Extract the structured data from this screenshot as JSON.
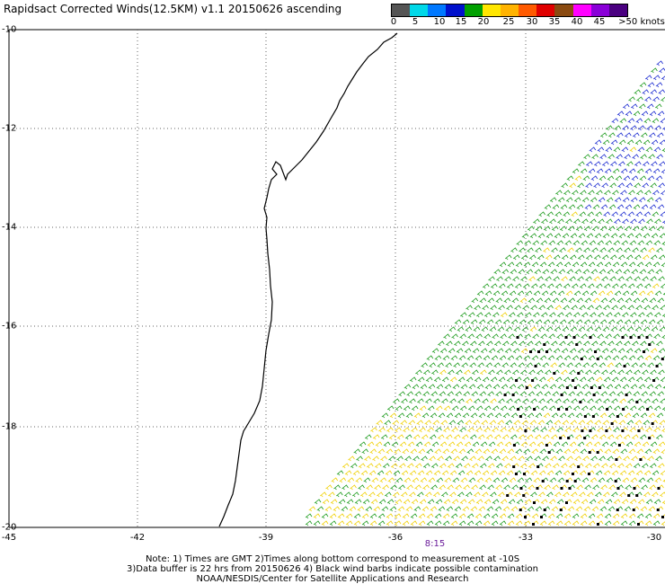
{
  "title": "Rapidsact Corrected Winds(12.5KM) v1.1 20150626 ascending",
  "legend": {
    "colors": [
      "#555555",
      "#00d8e8",
      "#0078ff",
      "#0010cc",
      "#00a000",
      "#ffe600",
      "#ffb300",
      "#ff5a00",
      "#e00000",
      "#8a4a10",
      "#ff00ff",
      "#8a00d8",
      "#4a0080"
    ],
    "labels": [
      "0",
      "5",
      "10",
      "15",
      "20",
      "25",
      "30",
      "35",
      "40",
      "45",
      ">50 knots"
    ]
  },
  "axes": {
    "lat_labels": [
      "-10",
      "-12",
      "-14",
      "-16",
      "-18",
      "-20"
    ],
    "lon_labels": [
      "-45",
      "-42",
      "-39",
      "-36",
      "-33",
      "-30"
    ]
  },
  "time_label": "8:15",
  "notes": {
    "line1": "Note: 1) Times are GMT 2)Times along bottom correspond to measurement at -10S",
    "line2": "3)Data buffer is 22 hrs from 20150626 4) Black wind barbs indicate possible contamination",
    "line3": "NOAA/NESDIS/Center for Satellite Applications and Research"
  }
}
